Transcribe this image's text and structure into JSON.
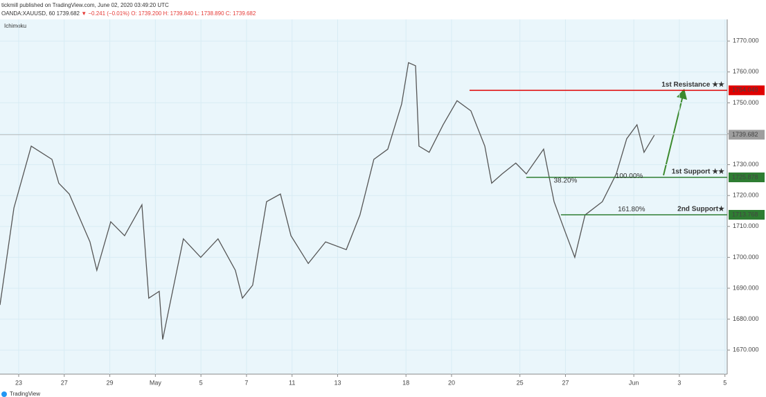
{
  "header": {
    "published": "tickmill published on TradingView.com, June 02, 2020 03:49:20 UTC",
    "symbol": "OANDA:XAUUSD, 60",
    "last": "1739.682",
    "change": "▼ −0.241 (−0.01%)",
    "ohlc": "O: 1739.200  H: 1739.840  L: 1738.890  C: 1739.682"
  },
  "indicator": "Ichimoku",
  "footer": "TradingView",
  "chart_data": {
    "type": "line",
    "color": "#555555",
    "x": [
      -0.82,
      -0.21,
      0.55,
      1.46,
      1.76,
      2.22,
      3.13,
      3.43,
      4.04,
      4.65,
      5.41,
      5.71,
      6.17,
      6.32,
      6.63,
      7.23,
      7.99,
      8.75,
      9.51,
      9.82,
      10.27,
      10.88,
      11.49,
      11.95,
      12.71,
      13.47,
      14.38,
      14.98,
      15.59,
      16.2,
      16.81,
      17.11,
      17.42,
      17.57,
      18.02,
      18.63,
      19.24,
      19.85,
      20.46,
      20.76,
      21.22,
      21.82,
      22.28,
      23.04,
      23.5,
      23.95,
      24.41,
      24.86,
      25.62,
      26.23,
      26.69,
      27.14,
      27.45,
      27.9
    ],
    "values": [
      1684.6,
      1716,
      1736,
      1731.7,
      1724,
      1720.5,
      1705,
      1695.8,
      1711.5,
      1707,
      1717,
      1686.8,
      1689,
      1673.4,
      1684.6,
      1706,
      1700,
      1706,
      1695.8,
      1686.8,
      1691,
      1718,
      1720.5,
      1707,
      1698,
      1705,
      1702.5,
      1713.7,
      1731.7,
      1735,
      1749.6,
      1763,
      1762,
      1736,
      1734,
      1742.9,
      1750.7,
      1747.4,
      1736,
      1724,
      1727,
      1730.5,
      1727,
      1735,
      1718,
      1709,
      1700,
      1713.7,
      1718,
      1727,
      1738.4,
      1742.9,
      1734,
      1739.5
    ],
    "xlim": [
      -0.82,
      31.1
    ],
    "xticks": [
      {
        "value": 0,
        "label": "23"
      },
      {
        "value": 2,
        "label": "27"
      },
      {
        "value": 4,
        "label": "29"
      },
      {
        "value": 6,
        "label": "May"
      },
      {
        "value": 8,
        "label": "5"
      },
      {
        "value": 10,
        "label": "7"
      },
      {
        "value": 12,
        "label": "11"
      },
      {
        "value": 14,
        "label": "13"
      },
      {
        "value": 17,
        "label": "18"
      },
      {
        "value": 19,
        "label": "20"
      },
      {
        "value": 22,
        "label": "25"
      },
      {
        "value": 24,
        "label": "27"
      },
      {
        "value": 27,
        "label": "Jun"
      },
      {
        "value": 29,
        "label": "3"
      },
      {
        "value": 31,
        "label": "5"
      }
    ],
    "ylim": [
      1662.2,
      1777
    ],
    "yticks": [
      {
        "value": 1670,
        "label": "1670.000"
      },
      {
        "value": 1680,
        "label": "1680.000"
      },
      {
        "value": 1690,
        "label": "1690.000"
      },
      {
        "value": 1700,
        "label": "1700.000"
      },
      {
        "value": 1710,
        "label": "1710.000"
      },
      {
        "value": 1720,
        "label": "1720.000"
      },
      {
        "value": 1730,
        "label": "1730.000"
      },
      {
        "value": 1740,
        "label": "1740.000"
      },
      {
        "value": 1750,
        "label": "1750.000"
      },
      {
        "value": 1760,
        "label": "1760.000"
      },
      {
        "value": 1770,
        "label": "1770.000"
      }
    ],
    "current_price": {
      "value": 1739.682,
      "label": "1739.682",
      "color": "#9e9e9e"
    },
    "levels": [
      {
        "name": "1st Resistance ★★",
        "value": 1754.049,
        "label": "1754.049",
        "color": "#e00000",
        "start_x": 19.79
      },
      {
        "name": "1st Support ★★",
        "value": 1725.878,
        "label": "1725.878",
        "color": "#2e7d32",
        "start_x": 22.28
      },
      {
        "name": "2nd Support★",
        "value": 1713.768,
        "label": "1713.768",
        "color": "#2e7d32",
        "start_x": 23.8
      }
    ],
    "annotations": [
      {
        "text": "38.20%",
        "x": 24.0,
        "y": 1724.8,
        "color": "#4a90c0"
      },
      {
        "text": "100.00%",
        "x": 26.8,
        "y": 1726.2,
        "color": "#c8a000"
      },
      {
        "text": "161.80%",
        "x": 26.9,
        "y": 1715.5,
        "color": "#c8a000"
      }
    ]
  }
}
